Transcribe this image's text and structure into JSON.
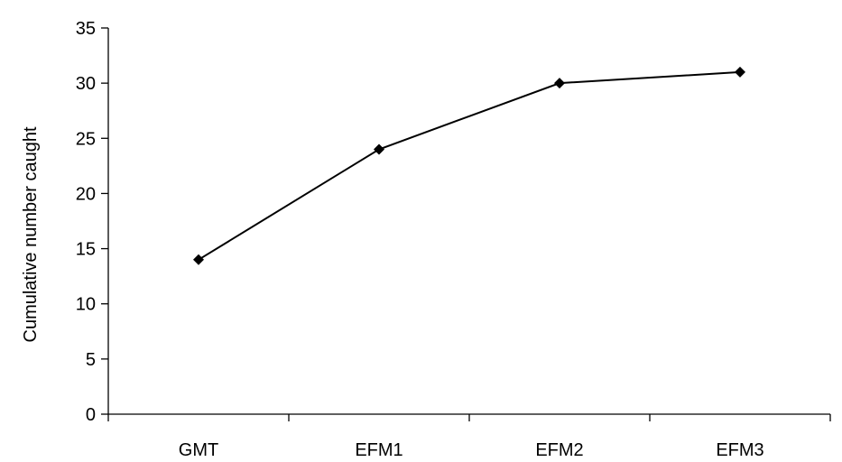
{
  "chart_data": {
    "type": "line",
    "categories": [
      "GMT",
      "EFM1",
      "EFM2",
      "EFM3"
    ],
    "series": [
      {
        "values": [
          14,
          24,
          30,
          31
        ]
      }
    ],
    "title": "",
    "xlabel": "",
    "ylabel": "Cumulative number caught",
    "ylim": [
      0,
      35
    ],
    "yticks": [
      0,
      5,
      10,
      15,
      20,
      25,
      30,
      35
    ],
    "grid": false,
    "legend": "none",
    "marker": "diamond",
    "line_color": "#000000"
  }
}
